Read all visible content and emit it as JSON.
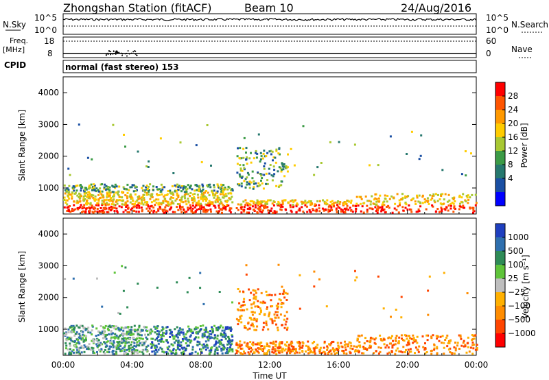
{
  "header": {
    "station": "Zhongshan Station (fitACF)",
    "beam": "Beam 10",
    "date": "24/Aug/2016"
  },
  "side_labels": {
    "nsky": "N.Sky",
    "nsearch": "N.Search",
    "freq": "Freq.",
    "freq_unit": "[MHz]",
    "nave": "Nave",
    "cpid": "CPID"
  },
  "cpid_text": "normal (fast stereo) 153",
  "chart_data": [
    {
      "type": "line",
      "name": "noise",
      "left_axis": {
        "label": "N.Sky",
        "ticks": [
          "10^5",
          "10^0"
        ]
      },
      "right_axis": {
        "label": "N.Search",
        "ticks": [
          "10^5",
          "10^0"
        ]
      },
      "series_level": 0.72
    },
    {
      "type": "line",
      "name": "freq-nave",
      "left_axis": {
        "label": "Freq. [MHz]",
        "ticks": [
          "18",
          "8"
        ],
        "ylim": [
          8,
          18
        ]
      },
      "right_axis": {
        "label": "Nave",
        "ticks": [
          "60",
          "0"
        ],
        "ylim": [
          0,
          60
        ]
      },
      "nave_level": 48,
      "freq_level": 10
    },
    {
      "type": "heatmap",
      "name": "power",
      "ylabel": "Slant Range [km]",
      "yticks": [
        "4000",
        "3000",
        "2000",
        "1000"
      ],
      "ylim": [
        180,
        4500
      ],
      "xlim": [
        0,
        24
      ],
      "colorbar": {
        "label": "Power [dB]",
        "ticks": [
          "28",
          "24",
          "20",
          "16",
          "12",
          "8",
          "4"
        ],
        "colors": [
          "#ff0000",
          "#ff5500",
          "#ff9900",
          "#ffcc00",
          "#a8c832",
          "#3c9b46",
          "#26786e",
          "#1a4fa3",
          "#0000ff"
        ]
      }
    },
    {
      "type": "heatmap",
      "name": "velocity",
      "ylabel": "Slant Range [km]",
      "yticks": [
        "4000",
        "3000",
        "2000",
        "1000"
      ],
      "ylim": [
        180,
        4500
      ],
      "xlim": [
        0,
        24
      ],
      "xticks": [
        "00:00",
        "04:00",
        "08:00",
        "12:00",
        "16:00",
        "20:00",
        "00:00"
      ],
      "xlabel": "Time UT",
      "colorbar": {
        "label": "Velocity [m s⁻¹]",
        "ticks": [
          "1000",
          "500",
          "100",
          "25",
          "−25",
          "−100",
          "−500",
          "−1000"
        ],
        "colors": [
          "#1f3fbf",
          "#2e6fae",
          "#2e8b57",
          "#5fc43a",
          "#bebebe",
          "#ffb000",
          "#ff8c00",
          "#ff4500",
          "#ff0000"
        ]
      }
    }
  ]
}
